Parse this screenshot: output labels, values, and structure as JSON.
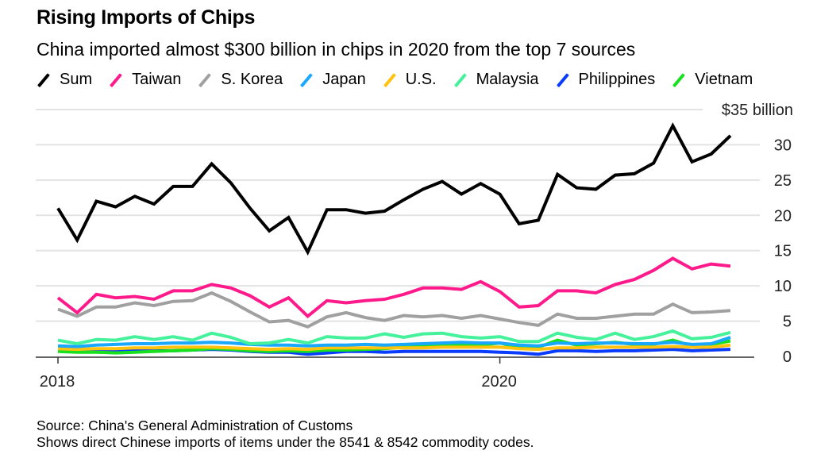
{
  "chart_data": {
    "type": "line",
    "title": "Rising Imports of Chips",
    "subtitle": "China imported almost $300 billion in chips in 2020 from the top 7 sources",
    "xlabel": "",
    "ylabel": "",
    "y_unit_label": "$35 billion",
    "ylim": [
      0,
      35
    ],
    "yticks": [
      "0",
      "5",
      "10",
      "15",
      "20",
      "25",
      "30"
    ],
    "xticks": [
      {
        "label": "2018",
        "index": 0
      },
      {
        "label": "2020",
        "index": 23
      }
    ],
    "grid": true,
    "legend_position": "top",
    "x": [
      "2018-01",
      "2018-02",
      "2018-03",
      "2018-04",
      "2018-05",
      "2018-06",
      "2018-07",
      "2018-08",
      "2018-09",
      "2018-10",
      "2018-11",
      "2018-12",
      "2019-01",
      "2019-02",
      "2019-03",
      "2019-04",
      "2019-05",
      "2019-06",
      "2019-07",
      "2019-08",
      "2019-09",
      "2019-10",
      "2019-11",
      "2019-12",
      "2020-01",
      "2020-02",
      "2020-03",
      "2020-04",
      "2020-05",
      "2020-06",
      "2020-07",
      "2020-08",
      "2020-09",
      "2020-10",
      "2020-11",
      "2020-12"
    ],
    "series": [
      {
        "name": "Sum",
        "color": "#000000",
        "values": [
          21.0,
          16.5,
          22.0,
          21.2,
          22.7,
          21.6,
          24.1,
          24.1,
          27.3,
          24.6,
          21.0,
          17.8,
          19.7,
          14.8,
          20.8,
          20.8,
          20.3,
          20.6,
          22.2,
          23.7,
          24.8,
          23.0,
          24.5,
          23.0,
          18.8,
          19.3,
          25.8,
          23.9,
          23.7,
          25.7,
          25.9,
          27.4,
          32.7,
          27.6,
          28.7,
          31.3
        ]
      },
      {
        "name": "Taiwan",
        "color": "#ff1a8c",
        "values": [
          8.3,
          6.2,
          8.8,
          8.3,
          8.5,
          8.1,
          9.3,
          9.3,
          10.2,
          9.7,
          8.6,
          7.0,
          8.3,
          5.7,
          7.9,
          7.6,
          7.9,
          8.1,
          8.8,
          9.7,
          9.7,
          9.5,
          10.6,
          9.2,
          7.0,
          7.2,
          9.3,
          9.3,
          9.0,
          10.2,
          10.9,
          12.2,
          13.9,
          12.4,
          13.1,
          12.8
        ]
      },
      {
        "name": "S. Korea",
        "color": "#a0a0a0",
        "values": [
          6.7,
          5.7,
          7.0,
          7.0,
          7.6,
          7.2,
          7.8,
          7.9,
          9.0,
          7.8,
          6.3,
          4.9,
          5.1,
          4.2,
          5.6,
          6.2,
          5.5,
          5.1,
          5.8,
          5.6,
          5.8,
          5.4,
          5.8,
          5.3,
          4.8,
          4.4,
          6.0,
          5.4,
          5.4,
          5.7,
          6.0,
          6.0,
          7.4,
          6.2,
          6.3,
          6.5
        ]
      },
      {
        "name": "Japan",
        "color": "#1aa7ff",
        "values": [
          1.5,
          1.4,
          1.6,
          1.7,
          1.8,
          1.8,
          1.9,
          1.9,
          2.0,
          1.9,
          1.7,
          1.6,
          1.6,
          1.5,
          1.6,
          1.6,
          1.7,
          1.6,
          1.7,
          1.8,
          1.9,
          2.0,
          1.9,
          1.9,
          1.6,
          1.5,
          1.9,
          1.8,
          1.9,
          1.9,
          1.8,
          1.8,
          2.0,
          1.7,
          1.8,
          2.7
        ]
      },
      {
        "name": "U.S.",
        "color": "#ffc20e",
        "values": [
          1.1,
          1.0,
          1.1,
          1.1,
          1.2,
          1.2,
          1.3,
          1.3,
          1.3,
          1.2,
          1.1,
          1.0,
          1.1,
          1.0,
          1.2,
          1.2,
          1.2,
          1.2,
          1.2,
          1.2,
          1.3,
          1.3,
          1.3,
          1.3,
          1.1,
          1.0,
          1.2,
          1.2,
          1.3,
          1.3,
          1.3,
          1.3,
          1.4,
          1.3,
          1.3,
          1.6
        ]
      },
      {
        "name": "Malaysia",
        "color": "#45f29b",
        "values": [
          2.3,
          1.8,
          2.4,
          2.3,
          2.8,
          2.4,
          2.8,
          2.3,
          3.3,
          2.7,
          1.8,
          1.9,
          2.4,
          1.9,
          2.8,
          2.6,
          2.6,
          3.2,
          2.7,
          3.2,
          3.3,
          2.8,
          2.6,
          2.8,
          2.1,
          2.1,
          3.3,
          2.7,
          2.4,
          3.3,
          2.4,
          2.8,
          3.6,
          2.5,
          2.7,
          3.4
        ]
      },
      {
        "name": "Philippines",
        "color": "#0a3cff",
        "values": [
          0.8,
          0.7,
          0.7,
          0.7,
          0.8,
          0.8,
          0.8,
          0.9,
          1.0,
          0.9,
          0.7,
          0.6,
          0.6,
          0.3,
          0.5,
          0.7,
          0.7,
          0.6,
          0.7,
          0.7,
          0.7,
          0.7,
          0.7,
          0.6,
          0.5,
          0.3,
          0.8,
          0.8,
          0.7,
          0.8,
          0.8,
          0.9,
          1.0,
          0.8,
          0.9,
          1.0
        ]
      },
      {
        "name": "Vietnam",
        "color": "#18e01f",
        "values": [
          0.7,
          0.6,
          0.6,
          0.5,
          0.6,
          0.7,
          0.8,
          0.9,
          1.1,
          1.0,
          0.8,
          0.7,
          0.8,
          0.7,
          0.9,
          0.9,
          1.0,
          1.1,
          1.3,
          1.5,
          1.7,
          1.6,
          1.6,
          1.9,
          1.2,
          1.3,
          2.3,
          1.6,
          1.8,
          2.0,
          1.7,
          1.7,
          2.3,
          1.5,
          1.7,
          2.2
        ]
      }
    ]
  },
  "footer": {
    "source": "Source: China's General Administration of Customs",
    "note": "Shows direct Chinese imports of items under the 8541 & 8542 commodity codes."
  }
}
